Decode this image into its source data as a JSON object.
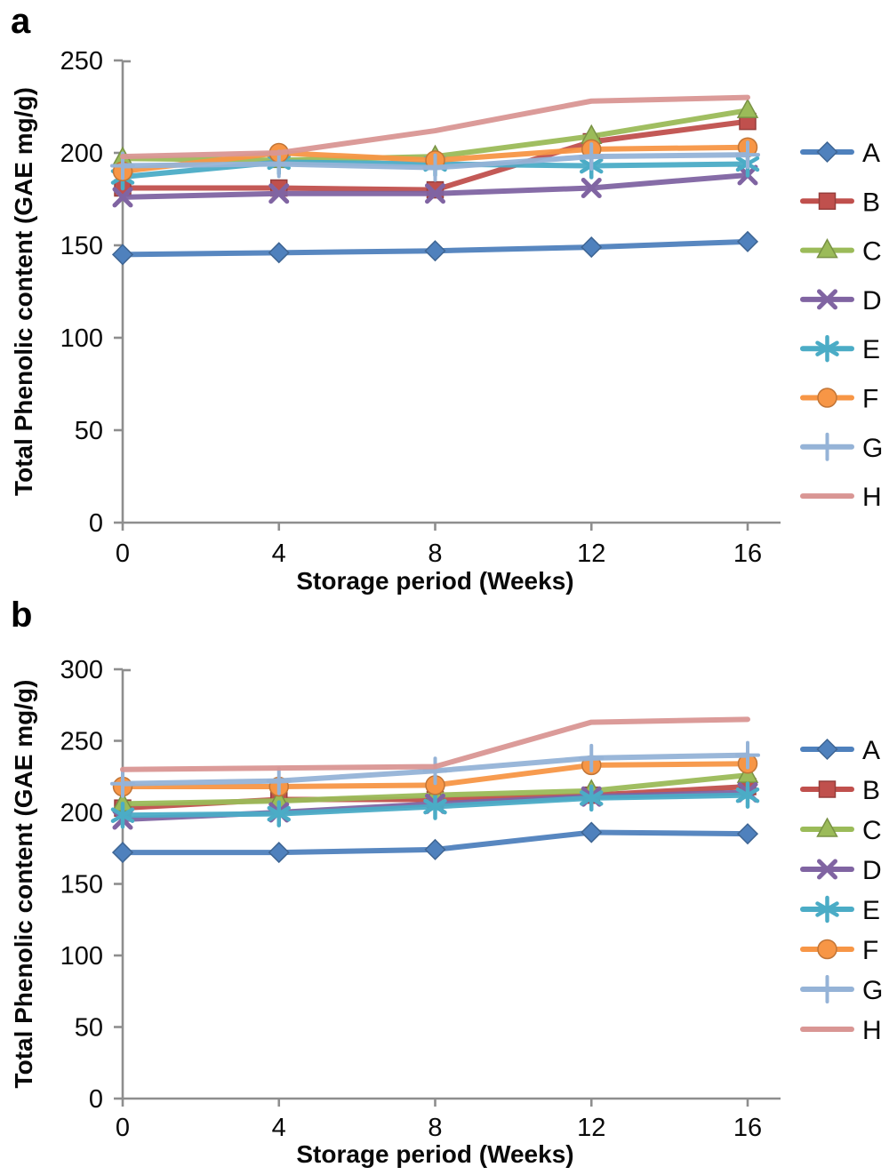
{
  "figure_title": "",
  "panels": [
    {
      "label": "a"
    },
    {
      "label": "b"
    }
  ],
  "palette": {
    "axis_gray": "#8e8e8e",
    "text_black": "#0a0a0a"
  },
  "chart_data": [
    {
      "type": "line",
      "panel_label": "a",
      "title": "",
      "xlabel": "Storage period (Weeks)",
      "ylabel": "Total Phenolic content (GAE mg/g)",
      "x": [
        0,
        4,
        8,
        12,
        16
      ],
      "xtick_labels": [
        "0",
        "4",
        "8",
        "12",
        "16"
      ],
      "ylim": [
        0,
        250
      ],
      "yticks": [
        0,
        50,
        100,
        150,
        200,
        250
      ],
      "grid": false,
      "legend_position": "right",
      "series": [
        {
          "name": "A",
          "marker": "diamond",
          "color": "#4F81BD",
          "values": [
            145,
            146,
            147,
            149,
            152
          ]
        },
        {
          "name": "B",
          "marker": "square",
          "color": "#C0504D",
          "values": [
            181,
            181,
            180,
            206,
            217
          ]
        },
        {
          "name": "C",
          "marker": "triangle",
          "color": "#9BBB59",
          "values": [
            197,
            196,
            198,
            209,
            223
          ]
        },
        {
          "name": "D",
          "marker": "x",
          "color": "#8064A2",
          "values": [
            176,
            178,
            178,
            181,
            188
          ]
        },
        {
          "name": "E",
          "marker": "asterisk",
          "color": "#4BACC6",
          "values": [
            187,
            195,
            194,
            193,
            194
          ]
        },
        {
          "name": "F",
          "marker": "circle",
          "color": "#F79646",
          "values": [
            190,
            200,
            196,
            202,
            203
          ]
        },
        {
          "name": "G",
          "marker": "plus",
          "color": "#95B3D7",
          "values": [
            193,
            194,
            192,
            198,
            199
          ]
        },
        {
          "name": "H",
          "marker": "none",
          "color": "#D99694",
          "values": [
            198,
            200,
            212,
            228,
            230
          ]
        }
      ]
    },
    {
      "type": "line",
      "panel_label": "b",
      "title": "",
      "xlabel": "Storage period (Weeks)",
      "ylabel": "Total Phenolic content (GAE mg/g)",
      "x": [
        0,
        4,
        8,
        12,
        16
      ],
      "xtick_labels": [
        "0",
        "4",
        "8",
        "12",
        "16"
      ],
      "ylim": [
        0,
        300
      ],
      "yticks": [
        0,
        50,
        100,
        150,
        200,
        250,
        300
      ],
      "grid": false,
      "legend_position": "right",
      "series": [
        {
          "name": "A",
          "marker": "diamond",
          "color": "#4F81BD",
          "values": [
            172,
            172,
            174,
            186,
            185
          ]
        },
        {
          "name": "B",
          "marker": "square",
          "color": "#C0504D",
          "values": [
            203,
            209,
            209,
            212,
            218
          ]
        },
        {
          "name": "C",
          "marker": "triangle",
          "color": "#9BBB59",
          "values": [
            206,
            208,
            212,
            215,
            226
          ]
        },
        {
          "name": "D",
          "marker": "x",
          "color": "#8064A2",
          "values": [
            195,
            200,
            206,
            211,
            214
          ]
        },
        {
          "name": "E",
          "marker": "asterisk",
          "color": "#4BACC6",
          "values": [
            198,
            199,
            204,
            210,
            212
          ]
        },
        {
          "name": "F",
          "marker": "circle",
          "color": "#F79646",
          "values": [
            218,
            218,
            219,
            233,
            234
          ]
        },
        {
          "name": "G",
          "marker": "plus",
          "color": "#95B3D7",
          "values": [
            220,
            222,
            229,
            238,
            240
          ]
        },
        {
          "name": "H",
          "marker": "none",
          "color": "#D99694",
          "values": [
            230,
            231,
            232,
            263,
            265
          ]
        }
      ]
    }
  ]
}
